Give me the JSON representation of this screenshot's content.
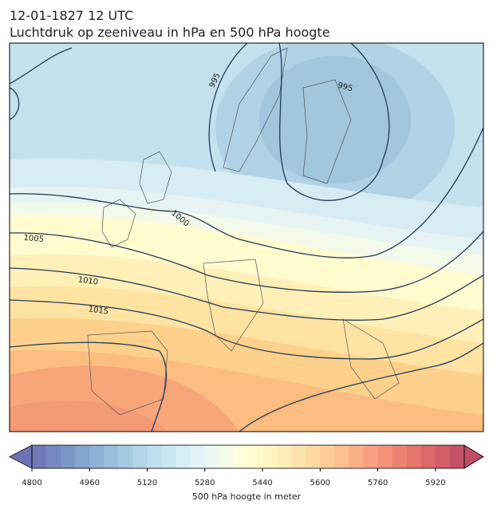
{
  "map": {
    "title": "12-01-1827 12 UTC",
    "subtitle": "Luchtdruk op zeeniveau in hPa en 500 hPa hoogte",
    "isobar_labels": [
      995,
      995,
      1000,
      1005,
      1010,
      1015
    ],
    "colorbar": {
      "label": "500 hPa hoogte in meter",
      "lim": [
        4800,
        6000
      ],
      "level_step": 40,
      "ticks": [
        4800,
        4960,
        5120,
        5280,
        5440,
        5600,
        5760,
        5920
      ]
    }
  }
}
